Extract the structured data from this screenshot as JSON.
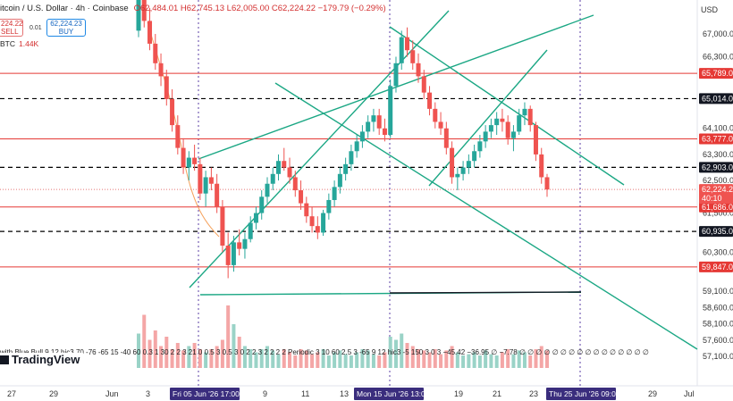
{
  "header": {
    "symbol": "itcoin / U.S. Dollar · 4h · Coinbase",
    "ohlc": "O62,484.01 H62,745.13 L62,005.00 C62,224.22 −179.79 (−0.29%)",
    "sell_price": "224.22",
    "sell_label": "SELL",
    "spread": "0.01",
    "buy_price": "62,224.23",
    "buy_label": "BUY",
    "volume_label": "BTC",
    "volume_value": "1.44K"
  },
  "indicator_text": "with Blue Bull 9 12 hic3 70 -76 -65 15 -40 60 0.3 1 30 2 2 3 21 0 0.5 3 0.5 3 0 2 2 3 2 2 2 2 Periodic 3 10 60 2.5 3 -65 9 12 hic3 -5 150 3 0 3 −45.42 −36.95 ∅ −7.78 ∅ ∅ ∅ ∅ ∅ ∅ ∅ ∅ ∅ ∅ ∅ ∅ ∅ ∅ ∅ ∅",
  "brand": "TradingView",
  "currency": "USD",
  "chart_data": {
    "type": "candlestick",
    "price_axis": [
      {
        "label": "67,000.00",
        "value": 67000
      },
      {
        "label": "66,300.00",
        "value": 66300
      },
      {
        "label": "64,100.00",
        "value": 64100
      },
      {
        "label": "63,300.00",
        "value": 63300
      },
      {
        "label": "62,500.00",
        "value": 62500
      },
      {
        "label": "61,500.00",
        "value": 61500
      },
      {
        "label": "60,300.00",
        "value": 60300
      },
      {
        "label": "59,100.00",
        "value": 59100
      },
      {
        "label": "58,600.00",
        "value": 58600
      },
      {
        "label": "58,100.00",
        "value": 58100
      },
      {
        "label": "57,600.00",
        "value": 57600
      },
      {
        "label": "57,100.00",
        "value": 57100
      }
    ],
    "red_levels": [
      {
        "label": "",
        "value": 68400
      },
      {
        "label": "65,789.00",
        "value": 65789
      },
      {
        "label": "63,777.00",
        "value": 63777
      },
      {
        "label": "61,686.00",
        "value": 61686
      },
      {
        "label": "59,847.00",
        "value": 59847
      }
    ],
    "dashed_levels": [
      {
        "label": "65,014.00",
        "value": 65014
      },
      {
        "label": "62,903.00",
        "value": 62903
      },
      {
        "label": "60,935.00",
        "value": 60935
      }
    ],
    "current_price": {
      "label": "62,224.22",
      "countdown": "40:10",
      "value": 62224.22
    },
    "x_ticks": [
      "27",
      "29",
      "Jun",
      "3",
      "Fri 05 Jun '26   17:00",
      "9",
      "11",
      "13",
      "Mon 15 Jun '26   13:00",
      "19",
      "21",
      "23",
      "Thu 25 Jun '26   09:00",
      "29",
      "Jul"
    ],
    "candles": [
      [
        67100,
        68400,
        66900,
        68100
      ],
      [
        68100,
        68300,
        67200,
        67400
      ],
      [
        67400,
        67800,
        66500,
        66700
      ],
      [
        66700,
        67000,
        65900,
        66100
      ],
      [
        66100,
        66400,
        65400,
        65700
      ],
      [
        65700,
        65900,
        64800,
        65000
      ],
      [
        65000,
        65300,
        64000,
        64200
      ],
      [
        64200,
        64500,
        63300,
        63500
      ],
      [
        63500,
        63800,
        62700,
        62900
      ],
      [
        62900,
        63400,
        62500,
        63200
      ],
      [
        63200,
        63600,
        62800,
        63000
      ],
      [
        63000,
        63200,
        61900,
        62100
      ],
      [
        62100,
        62800,
        61700,
        62600
      ],
      [
        62600,
        62900,
        62200,
        62400
      ],
      [
        62400,
        62700,
        61500,
        61700
      ],
      [
        61700,
        61900,
        60300,
        60500
      ],
      [
        60500,
        60900,
        59500,
        59900
      ],
      [
        59900,
        60800,
        59700,
        60600
      ],
      [
        60600,
        61000,
        60200,
        60400
      ],
      [
        60400,
        60900,
        60100,
        60700
      ],
      [
        60700,
        61400,
        60600,
        61200
      ],
      [
        61200,
        61700,
        61000,
        61500
      ],
      [
        61500,
        62200,
        61300,
        62000
      ],
      [
        62000,
        62600,
        61800,
        62400
      ],
      [
        62400,
        62900,
        62200,
        62700
      ],
      [
        62700,
        63300,
        62500,
        63100
      ],
      [
        63100,
        63500,
        62800,
        62900
      ],
      [
        62900,
        63200,
        62400,
        62600
      ],
      [
        62600,
        62800,
        62000,
        62200
      ],
      [
        62200,
        62500,
        61600,
        61800
      ],
      [
        61800,
        62000,
        61200,
        61400
      ],
      [
        61400,
        61700,
        60900,
        61100
      ],
      [
        61100,
        61400,
        60700,
        60900
      ],
      [
        60900,
        61600,
        60800,
        61500
      ],
      [
        61500,
        62100,
        61300,
        61900
      ],
      [
        61900,
        62500,
        61700,
        62300
      ],
      [
        62300,
        62900,
        62100,
        62700
      ],
      [
        62700,
        63200,
        62500,
        63000
      ],
      [
        63000,
        63600,
        62800,
        63400
      ],
      [
        63400,
        63900,
        63200,
        63700
      ],
      [
        63700,
        64200,
        63500,
        64000
      ],
      [
        64000,
        64500,
        63800,
        64300
      ],
      [
        64300,
        64700,
        64000,
        64500
      ],
      [
        64500,
        64700,
        63900,
        64100
      ],
      [
        64100,
        64400,
        63700,
        63900
      ],
      [
        63900,
        65600,
        63800,
        65400
      ],
      [
        65400,
        66300,
        65200,
        66100
      ],
      [
        66100,
        67100,
        65900,
        66900
      ],
      [
        66900,
        67200,
        66300,
        66500
      ],
      [
        66500,
        66800,
        65900,
        66100
      ],
      [
        66100,
        66400,
        65500,
        65700
      ],
      [
        65700,
        65900,
        65000,
        65200
      ],
      [
        65200,
        65400,
        64500,
        64700
      ],
      [
        64700,
        64900,
        64100,
        64300
      ],
      [
        64300,
        64600,
        63900,
        64100
      ],
      [
        64100,
        64300,
        63300,
        63500
      ],
      [
        63500,
        63700,
        62400,
        62600
      ],
      [
        62600,
        62900,
        62200,
        62700
      ],
      [
        62700,
        63100,
        62500,
        62900
      ],
      [
        62900,
        63300,
        62700,
        63100
      ],
      [
        63100,
        63600,
        62900,
        63400
      ],
      [
        63400,
        63900,
        63200,
        63700
      ],
      [
        63700,
        64200,
        63500,
        64000
      ],
      [
        64000,
        64400,
        63800,
        64200
      ],
      [
        64200,
        64600,
        63900,
        64400
      ],
      [
        64400,
        64700,
        64000,
        64300
      ],
      [
        64300,
        64500,
        63600,
        63800
      ],
      [
        63800,
        64200,
        63400,
        64000
      ],
      [
        64000,
        64700,
        63900,
        64500
      ],
      [
        64500,
        64900,
        64200,
        64700
      ],
      [
        64700,
        64800,
        64000,
        64200
      ],
      [
        64200,
        64300,
        63100,
        63300
      ],
      [
        63300,
        63500,
        62400,
        62600
      ],
      [
        62600,
        62700,
        62000,
        62224
      ]
    ],
    "volumes": [
      0.55,
      0.85,
      0.45,
      0.6,
      0.35,
      0.5,
      0.3,
      0.4,
      0.28,
      0.35,
      0.4,
      0.3,
      0.25,
      0.3,
      0.35,
      0.45,
      1.0,
      0.7,
      0.5,
      0.35,
      0.3,
      0.25,
      0.3,
      0.35,
      0.28,
      0.22,
      0.3,
      0.25,
      0.2,
      0.3,
      0.28,
      0.22,
      0.25,
      0.3,
      0.2,
      0.25,
      0.28,
      0.22,
      0.2,
      0.25,
      0.3,
      0.28,
      0.22,
      0.2,
      0.25,
      0.5,
      0.45,
      0.55,
      0.4,
      0.35,
      0.3,
      0.28,
      0.25,
      0.3,
      0.22,
      0.28,
      0.35,
      0.25,
      0.2,
      0.22,
      0.25,
      0.2,
      0.28,
      0.22,
      0.2,
      0.25,
      0.3,
      0.22,
      0.28,
      0.25,
      0.2,
      0.3,
      0.35,
      0.28
    ]
  }
}
